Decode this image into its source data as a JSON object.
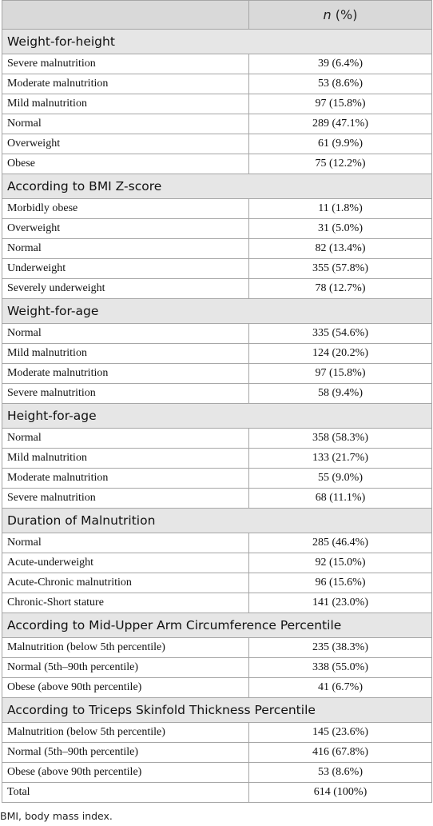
{
  "header": {
    "variable": "n",
    "unit": "(%)"
  },
  "sections": [
    {
      "title": "Weight-for-height",
      "rows": [
        [
          "Severe malnutrition",
          "39 (6.4%)"
        ],
        [
          "Moderate malnutrition",
          "53 (8.6%)"
        ],
        [
          "Mild malnutrition",
          "97 (15.8%)"
        ],
        [
          "Normal",
          "289 (47.1%)"
        ],
        [
          "Overweight",
          "61 (9.9%)"
        ],
        [
          "Obese",
          "75 (12.2%)"
        ]
      ]
    },
    {
      "title": "According to BMI Z-score",
      "rows": [
        [
          "Morbidly obese",
          "11 (1.8%)"
        ],
        [
          "Overweight",
          "31 (5.0%)"
        ],
        [
          "Normal",
          "82 (13.4%)"
        ],
        [
          "Underweight",
          "355 (57.8%)"
        ],
        [
          "Severely underweight",
          "78 (12.7%)"
        ]
      ]
    },
    {
      "title": "Weight-for-age",
      "rows": [
        [
          "Normal",
          "335 (54.6%)"
        ],
        [
          "Mild malnutrition",
          "124 (20.2%)"
        ],
        [
          "Moderate malnutrition",
          "97 (15.8%)"
        ],
        [
          "Severe malnutrition",
          "58 (9.4%)"
        ]
      ]
    },
    {
      "title": "Height-for-age",
      "rows": [
        [
          "Normal",
          "358 (58.3%)"
        ],
        [
          "Mild malnutrition",
          "133 (21.7%)"
        ],
        [
          "Moderate malnutrition",
          "55 (9.0%)"
        ],
        [
          "Severe malnutrition",
          "68 (11.1%)"
        ]
      ]
    },
    {
      "title": "Duration of Malnutrition",
      "rows": [
        [
          "Normal",
          "285 (46.4%)"
        ],
        [
          "Acute-underweight",
          "92 (15.0%)"
        ],
        [
          "Acute-Chronic malnutrition",
          "96 (15.6%)"
        ],
        [
          "Chronic-Short stature",
          "141 (23.0%)"
        ]
      ]
    },
    {
      "title": "According to Mid-Upper Arm Circumference Percentile",
      "rows": [
        [
          "Malnutrition (below 5th percentile)",
          "235 (38.3%)"
        ],
        [
          "Normal (5th–90th percentile)",
          "338 (55.0%)"
        ],
        [
          "Obese (above 90th percentile)",
          "41 (6.7%)"
        ]
      ]
    },
    {
      "title": "According to Triceps Skinfold Thickness Percentile",
      "rows": [
        [
          "Malnutrition (below 5th percentile)",
          "145 (23.6%)"
        ],
        [
          "Normal (5th–90th percentile)",
          "416 (67.8%)"
        ],
        [
          "Obese (above 90th percentile)",
          "53 (8.6%)"
        ]
      ]
    }
  ],
  "total": [
    "Total",
    "614 (100%)"
  ],
  "footnote": "BMI, body mass index."
}
